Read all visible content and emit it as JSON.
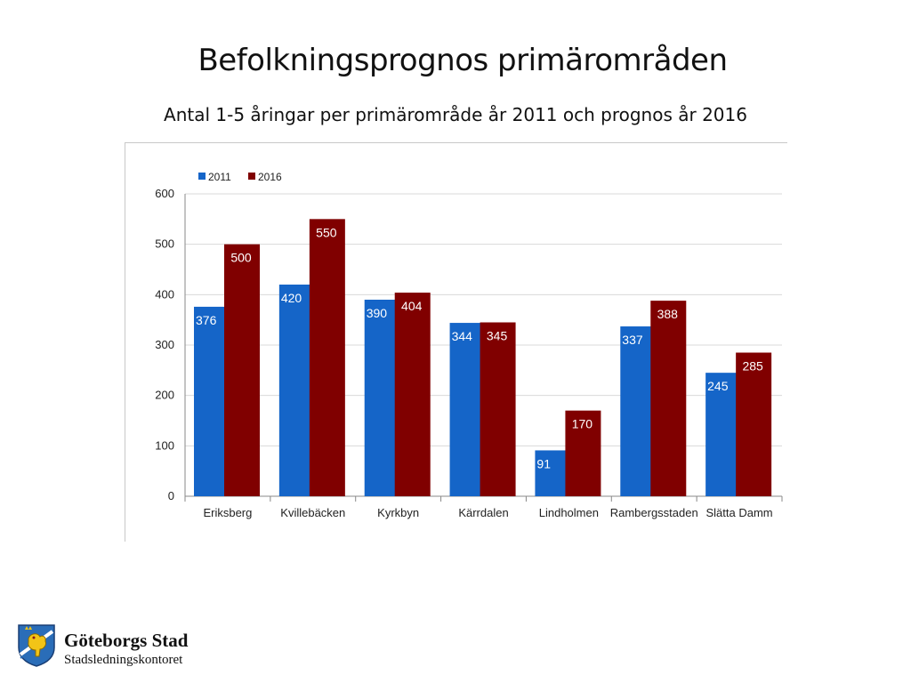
{
  "slide": {
    "title": "Befolkningsprognos primärområden",
    "subtitle": "Antal 1-5 åringar per primärområde år 2011 och prognos år 2016"
  },
  "footer": {
    "org_name": "Göteborgs Stad",
    "department": "Stadsledningskontoret",
    "logo_icon": "goteborg-coat-of-arms-icon"
  },
  "chart_data": {
    "type": "bar",
    "title": "",
    "xlabel": "",
    "ylabel": "",
    "ylim": [
      0,
      600
    ],
    "yticks": [
      0,
      100,
      200,
      300,
      400,
      500,
      600
    ],
    "grid": true,
    "legend_position": "top-left",
    "categories": [
      "Eriksberg",
      "Kvillebäcken",
      "Kyrkbyn",
      "Kärrdalen",
      "Lindholmen",
      "Rambergsstaden",
      "Slätta Damm"
    ],
    "series": [
      {
        "name": "2011",
        "color": "#1565c8",
        "values": [
          376,
          420,
          390,
          344,
          91,
          337,
          245
        ]
      },
      {
        "name": "2016",
        "color": "#800000",
        "values": [
          500,
          550,
          404,
          345,
          170,
          388,
          285
        ]
      }
    ]
  }
}
